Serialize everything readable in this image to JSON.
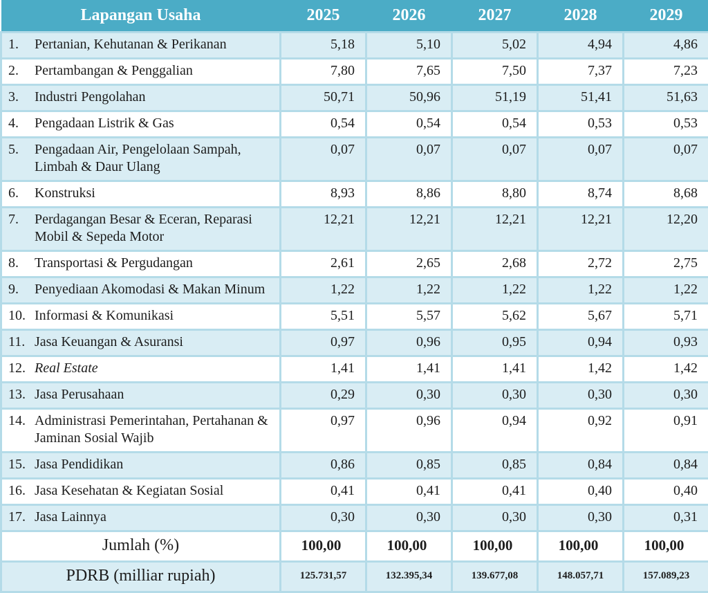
{
  "table": {
    "header": {
      "label_col": "Lapangan Usaha",
      "years": [
        "2025",
        "2026",
        "2027",
        "2028",
        "2029"
      ]
    },
    "rows": [
      {
        "no": "1.",
        "name": "Pertanian, Kehutanan & Perikanan",
        "italic": false,
        "values": [
          "5,18",
          "5,10",
          "5,02",
          "4,94",
          "4,86"
        ]
      },
      {
        "no": "2.",
        "name": "Pertambangan & Penggalian",
        "italic": false,
        "values": [
          "7,80",
          "7,65",
          "7,50",
          "7,37",
          "7,23"
        ]
      },
      {
        "no": "3.",
        "name": "Industri Pengolahan",
        "italic": false,
        "values": [
          "50,71",
          "50,96",
          "51,19",
          "51,41",
          "51,63"
        ]
      },
      {
        "no": "4.",
        "name": "Pengadaan Listrik & Gas",
        "italic": false,
        "values": [
          "0,54",
          "0,54",
          "0,54",
          "0,53",
          "0,53"
        ]
      },
      {
        "no": "5.",
        "name": "Pengadaan Air, Pengelolaan Sampah, Limbah & Daur Ulang",
        "italic": false,
        "values": [
          "0,07",
          "0,07",
          "0,07",
          "0,07",
          "0,07"
        ]
      },
      {
        "no": "6.",
        "name": "Konstruksi",
        "italic": false,
        "values": [
          "8,93",
          "8,86",
          "8,80",
          "8,74",
          "8,68"
        ]
      },
      {
        "no": "7.",
        "name": "Perdagangan Besar & Eceran, Reparasi Mobil & Sepeda Motor",
        "italic": false,
        "values": [
          "12,21",
          "12,21",
          "12,21",
          "12,21",
          "12,20"
        ]
      },
      {
        "no": "8.",
        "name": "Transportasi & Pergudangan",
        "italic": false,
        "values": [
          "2,61",
          "2,65",
          "2,68",
          "2,72",
          "2,75"
        ]
      },
      {
        "no": "9.",
        "name": "Penyediaan Akomodasi & Makan Minum",
        "italic": false,
        "values": [
          "1,22",
          "1,22",
          "1,22",
          "1,22",
          "1,22"
        ]
      },
      {
        "no": "10.",
        "name": "Informasi & Komunikasi",
        "italic": false,
        "values": [
          "5,51",
          "5,57",
          "5,62",
          "5,67",
          "5,71"
        ]
      },
      {
        "no": "11.",
        "name": "Jasa Keuangan & Asuransi",
        "italic": false,
        "values": [
          "0,97",
          "0,96",
          "0,95",
          "0,94",
          "0,93"
        ]
      },
      {
        "no": "12.",
        "name": "Real Estate",
        "italic": true,
        "values": [
          "1,41",
          "1,41",
          "1,41",
          "1,42",
          "1,42"
        ]
      },
      {
        "no": "13.",
        "name": "Jasa Perusahaan",
        "italic": false,
        "values": [
          "0,29",
          "0,30",
          "0,30",
          "0,30",
          "0,30"
        ]
      },
      {
        "no": "14.",
        "name": "Administrasi Pemerintahan, Pertahanan & Jaminan Sosial Wajib",
        "italic": false,
        "values": [
          "0,97",
          "0,96",
          "0,94",
          "0,92",
          "0,91"
        ]
      },
      {
        "no": "15.",
        "name": "Jasa Pendidikan",
        "italic": false,
        "values": [
          "0,86",
          "0,85",
          "0,85",
          "0,84",
          "0,84"
        ]
      },
      {
        "no": "16.",
        "name": "Jasa Kesehatan & Kegiatan Sosial",
        "italic": false,
        "values": [
          "0,41",
          "0,41",
          "0,41",
          "0,40",
          "0,40"
        ]
      },
      {
        "no": "17.",
        "name": "Jasa Lainnya",
        "italic": false,
        "values": [
          "0,30",
          "0,30",
          "0,30",
          "0,30",
          "0,31"
        ]
      }
    ],
    "summary": {
      "jumlah_label": "Jumlah (%)",
      "jumlah_values": [
        "100,00",
        "100,00",
        "100,00",
        "100,00",
        "100,00"
      ],
      "pdrb_label": "PDRB (milliar rupiah)",
      "pdrb_values": [
        "125.731,57",
        "132.395,34",
        "139.677,08",
        "148.057,71",
        "157.089,23"
      ]
    },
    "colors": {
      "header_bg": "#4bacc6",
      "header_text": "#ffffff",
      "row_alt_bg": "#d9edf4",
      "row_bg": "#ffffff",
      "border": "#b4dbe8",
      "text": "#1d1d1d"
    }
  }
}
